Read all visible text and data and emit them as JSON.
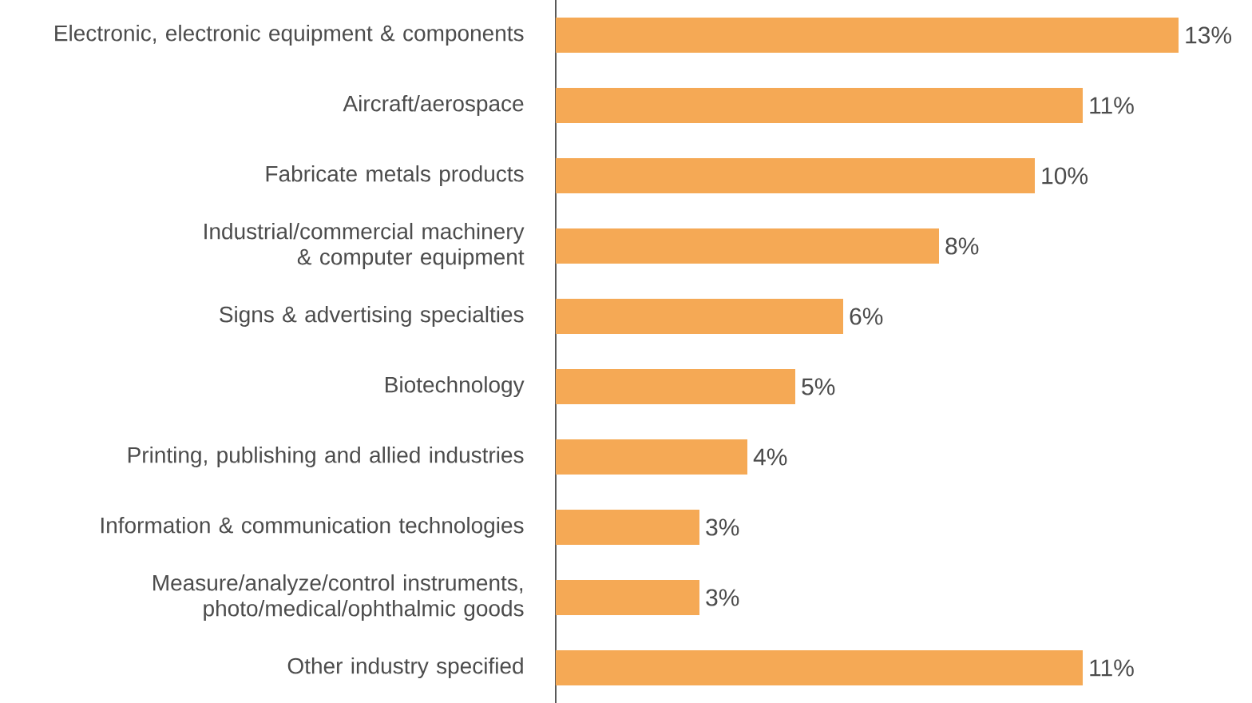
{
  "chart_data": {
    "type": "bar",
    "orientation": "horizontal",
    "categories": [
      "Electronic, electronic equipment & components",
      "Aircraft/aerospace",
      "Fabricate metals products",
      "Industrial/commercial machinery & computer equipment",
      "Signs & advertising specialties",
      "Biotechnology",
      "Printing, publishing and allied industries",
      "Information & communication technologies",
      "Measure/analyze/control instruments, photo/medical/ophthalmic goods",
      "Other industry specified"
    ],
    "values": [
      13,
      11,
      10,
      8,
      6,
      5,
      4,
      3,
      3,
      11
    ],
    "value_labels": [
      "13%",
      "11%",
      "10%",
      "8%",
      "6%",
      "5%",
      "4%",
      "3%",
      "3%",
      "11%"
    ],
    "color": "#f5a955"
  }
}
